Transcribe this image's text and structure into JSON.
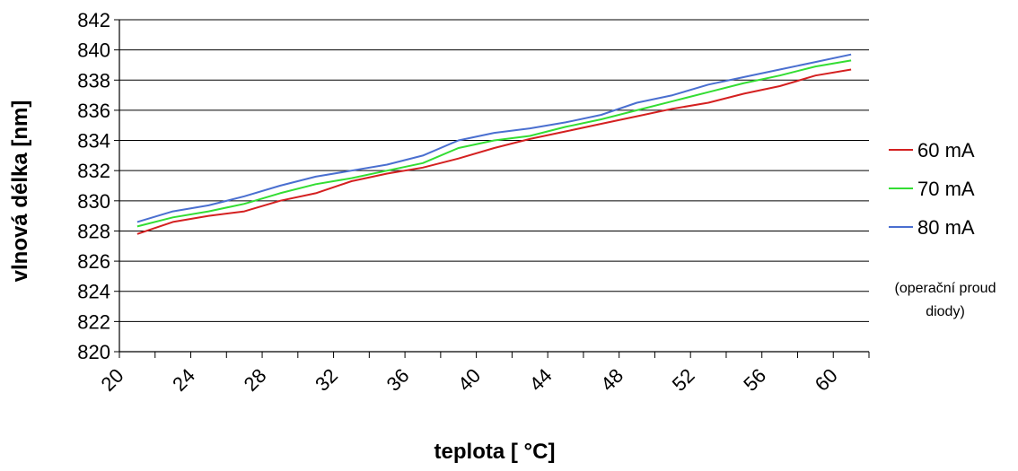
{
  "chart_data": {
    "type": "line",
    "title": "",
    "xlabel": "teplota [ °C]",
    "ylabel": "vlnová délka [nm]",
    "xlim": [
      20,
      62
    ],
    "ylim": [
      820,
      842
    ],
    "x_ticks": [
      20,
      24,
      28,
      32,
      36,
      40,
      44,
      48,
      52,
      56,
      60
    ],
    "y_ticks": [
      820,
      822,
      824,
      826,
      828,
      830,
      832,
      834,
      836,
      838,
      840,
      842
    ],
    "grid": "horizontal",
    "legend_position": "right",
    "legend_note": [
      "(operační proud",
      "diody)"
    ],
    "x": [
      21,
      23,
      25,
      27,
      29,
      31,
      33,
      35,
      37,
      39,
      41,
      43,
      45,
      47,
      49,
      51,
      53,
      55,
      57,
      59,
      61
    ],
    "series": [
      {
        "name": "60 mA",
        "color": "#d42020",
        "values": [
          827.8,
          828.6,
          829.0,
          829.3,
          830.0,
          830.5,
          831.3,
          831.8,
          832.2,
          832.8,
          833.5,
          834.1,
          834.6,
          835.1,
          835.6,
          836.1,
          836.5,
          837.1,
          837.6,
          838.3,
          838.7
        ]
      },
      {
        "name": "70 mA",
        "color": "#33dd33",
        "values": [
          828.3,
          828.9,
          829.3,
          829.8,
          830.5,
          831.1,
          831.5,
          832.0,
          832.5,
          833.5,
          834.0,
          834.3,
          834.9,
          835.4,
          836.0,
          836.6,
          837.2,
          837.8,
          838.3,
          838.9,
          839.3
        ]
      },
      {
        "name": "80 mA",
        "color": "#4a6fd0",
        "values": [
          828.6,
          829.3,
          829.7,
          830.3,
          831.0,
          831.6,
          832.0,
          832.4,
          833.0,
          834.0,
          834.5,
          834.8,
          835.2,
          835.7,
          836.5,
          837.0,
          837.7,
          838.2,
          838.7,
          839.2,
          839.7
        ]
      }
    ]
  }
}
